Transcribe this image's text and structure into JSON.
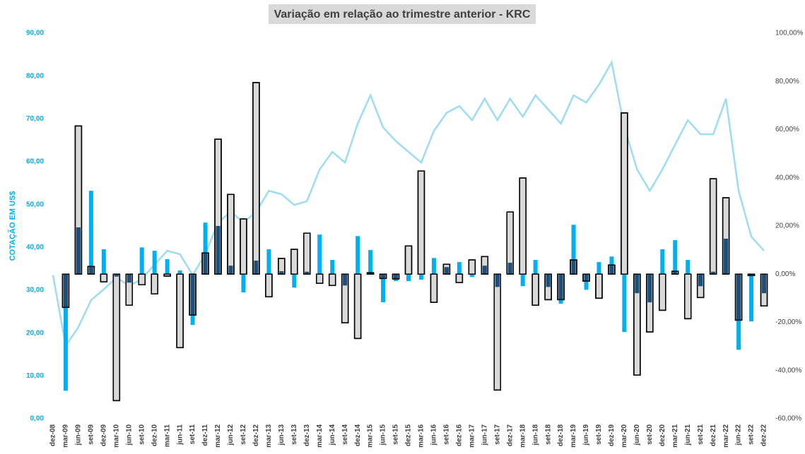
{
  "chart_data": {
    "type": "combo",
    "title": "Variação em relação ao trimestre anterior - KRC",
    "y_label": "COTAÇÃO EM US$",
    "categories": [
      "dez-08",
      "mar-09",
      "jun-09",
      "set-09",
      "dez-09",
      "mar-10",
      "jun-10",
      "set-10",
      "dez-10",
      "mar-11",
      "jun-11",
      "set-11",
      "dez-11",
      "mar-12",
      "jun-12",
      "set-12",
      "dez-12",
      "mar-13",
      "jun-13",
      "set-13",
      "dez-13",
      "mar-14",
      "jun-14",
      "set-14",
      "dez-14",
      "mar-15",
      "jun-15",
      "set-15",
      "dez-15",
      "mar-16",
      "jun-16",
      "set-16",
      "dez-16",
      "mar-17",
      "jun-17",
      "set-17",
      "dez-17",
      "mar-18",
      "jun-18",
      "set-18",
      "dez-18",
      "mar-19",
      "jun-19",
      "set-19",
      "dez-19",
      "mar-20",
      "jun-20",
      "set-20",
      "dez-20",
      "mar-21",
      "jun-21",
      "set-21",
      "dez-21",
      "mar-22",
      "jun-22",
      "set-22",
      "dez-22"
    ],
    "series": [
      {
        "type": "line",
        "color": "#9ddcf5",
        "values": [
          33.5,
          17,
          21.4,
          27.7,
          30.2,
          33,
          31,
          32.6,
          36,
          39.2,
          38.4,
          33.5,
          38.4,
          45.8,
          48.3,
          45.8,
          48.3,
          53.2,
          52.4,
          49.9,
          50.8,
          58.2,
          62.3,
          59.8,
          68.9,
          75.5,
          68,
          64.8,
          62.3,
          59.8,
          67.2,
          71.4,
          73,
          69.7,
          74.7,
          69.7,
          74.7,
          70.5,
          75.5,
          72.2,
          68.9,
          75.5,
          73.8,
          78,
          83.2,
          68,
          58.2,
          53.2,
          58.2,
          64,
          69.7,
          66.4,
          66.4,
          74.7,
          53.2,
          42.5,
          39.2
        ]
      },
      {
        "type": "bar",
        "axis": "y2",
        "color": "#d9d9d9",
        "border": "#000000",
        "values": [
          null,
          -13.8,
          61.5,
          3.2,
          -3.2,
          -52.5,
          -12.9,
          -4.4,
          -8.2,
          -0.8,
          -30.5,
          -17,
          8.8,
          56,
          33.1,
          22.9,
          79.5,
          -9.4,
          6.5,
          10.3,
          17,
          -3.8,
          -4.7,
          -20.2,
          -26.7,
          0.6,
          -1.8,
          -2,
          11.7,
          42.8,
          -11.7,
          4.1,
          -3.5,
          5.9,
          7.3,
          -48.1,
          25.8,
          39.9,
          -12.9,
          -10.6,
          -10.6,
          5.9,
          -2.9,
          -10,
          3.8,
          66.9,
          -41.9,
          -24,
          -15,
          1.2,
          -18.5,
          -9.7,
          39.6,
          31.7,
          -19.1,
          -0.6,
          -13.2
        ]
      },
      {
        "type": "bar",
        "axis": "y2",
        "color": "#00b0f0",
        "values": [
          null,
          -48.4,
          19.4,
          34.6,
          10.3,
          -1,
          -3.5,
          11.1,
          9.7,
          6.2,
          1.5,
          -21.1,
          21.4,
          20,
          3.5,
          -7.6,
          5.6,
          10.3,
          1.2,
          -5.6,
          1,
          16.4,
          5.9,
          -4.7,
          15.8,
          10,
          -11.7,
          -2.9,
          -2.9,
          -2.3,
          6.7,
          2.9,
          5,
          -1.2,
          3.5,
          -5.3,
          4.7,
          -5,
          5.9,
          -5.3,
          -12.3,
          20.5,
          -6.5,
          5,
          7.3,
          -24,
          -7.9,
          -11.7,
          10.3,
          14.1,
          5.9,
          -5,
          1,
          14.7,
          -31.4,
          -19.6,
          -7.9
        ]
      }
    ],
    "overlap_color": "#1f4e79",
    "ylim": [
      0,
      90
    ],
    "yticks": [
      {
        "value": 0,
        "label": "0,00"
      },
      {
        "value": 10,
        "label": "10,00"
      },
      {
        "value": 20,
        "label": "20,00"
      },
      {
        "value": 30,
        "label": "30,00"
      },
      {
        "value": 40,
        "label": "40,00"
      },
      {
        "value": 50,
        "label": "50,00"
      },
      {
        "value": 60,
        "label": "60,00"
      },
      {
        "value": 70,
        "label": "70,00"
      },
      {
        "value": 80,
        "label": "80,00"
      },
      {
        "value": 90,
        "label": "90,00"
      }
    ],
    "y2lim": [
      -60,
      100
    ],
    "y2ticks": [
      {
        "value": -60,
        "label": "-60,00%"
      },
      {
        "value": -40,
        "label": "-40,00%"
      },
      {
        "value": -20,
        "label": "-20,00%"
      },
      {
        "value": 0,
        "label": "0,00%"
      },
      {
        "value": 20,
        "label": "20,00%"
      },
      {
        "value": 40,
        "label": "40,00%"
      },
      {
        "value": 60,
        "label": "60,00%"
      },
      {
        "value": 80,
        "label": "80,00%"
      },
      {
        "value": 100,
        "label": "100,00%"
      }
    ],
    "grid": false
  }
}
